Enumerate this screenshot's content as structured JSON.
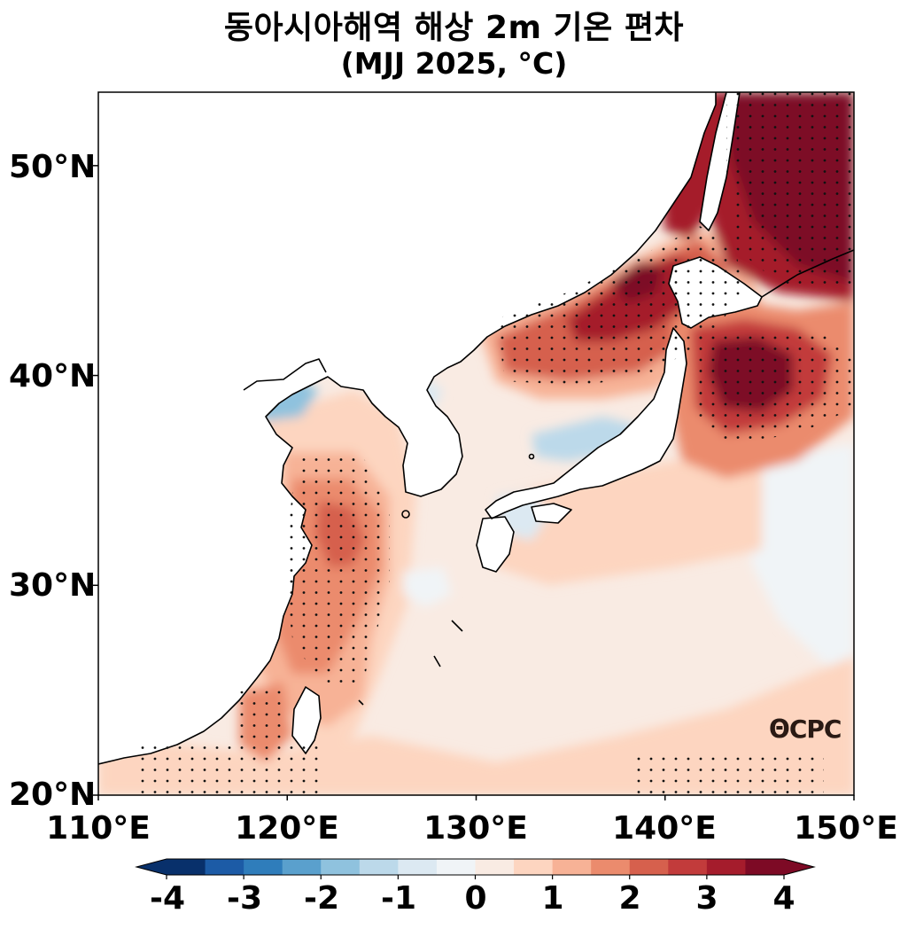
{
  "title": "동아시아해역 해상 2m 기온 편차",
  "subtitle": "(MJJ 2025, °C)",
  "logo_text": "CPC",
  "chart_data": {
    "type": "heatmap",
    "variable": "해상 2m 기온 편차",
    "period": "MJJ 2025",
    "unit": "°C",
    "lon_range": [
      110,
      150
    ],
    "lat_range": [
      20,
      53.5
    ],
    "x_ticks": [
      "110°E",
      "120°E",
      "130°E",
      "140°E",
      "150°E"
    ],
    "y_ticks": [
      "20°N",
      "30°N",
      "40°N",
      "50°N"
    ],
    "colorbar": {
      "levels": [
        -4,
        -3.5,
        -3,
        -2.5,
        -2,
        -1.5,
        -1,
        -0.5,
        0,
        0.5,
        1,
        1.5,
        2,
        2.5,
        3,
        3.5,
        4
      ],
      "tick_labels": [
        "-4",
        "-3",
        "-2",
        "-1",
        "0",
        "1",
        "2",
        "3",
        "4"
      ],
      "colors": [
        "#08306b",
        "#1c5ba6",
        "#2f7dbb",
        "#5aa0cd",
        "#8fc2de",
        "#bcd9ea",
        "#dce9f2",
        "#f0f4f7",
        "#f9ebe3",
        "#fdd5c0",
        "#f7b296",
        "#eb8b6d",
        "#d6604d",
        "#c23b3b",
        "#a51c2c",
        "#7d0a25"
      ],
      "extend": "both"
    },
    "stippling": "dots mark statistically significant anomalies",
    "features": [
      {
        "region": "Eastern Sea (Sea of Japan) north / Primorye coast",
        "anomaly": 3.5
      },
      {
        "region": "Off Hokkaido / northwest Pacific near 40°N 143°E",
        "anomaly": 4.0
      },
      {
        "region": "Sea of Okhotsk near Sakhalin",
        "anomaly": 4.0
      },
      {
        "region": "East China Sea near 32°N 123°E",
        "anomaly": 2.5
      },
      {
        "region": "Taiwan Strait",
        "anomaly": 1.5
      },
      {
        "region": "Bohai Bay",
        "anomaly": -1.5
      },
      {
        "region": "Seas south of Japan",
        "anomaly": 0.5
      },
      {
        "region": "Northwest Pacific open ocean 25-33°N 145-150°E",
        "anomaly": -0.3
      }
    ]
  }
}
